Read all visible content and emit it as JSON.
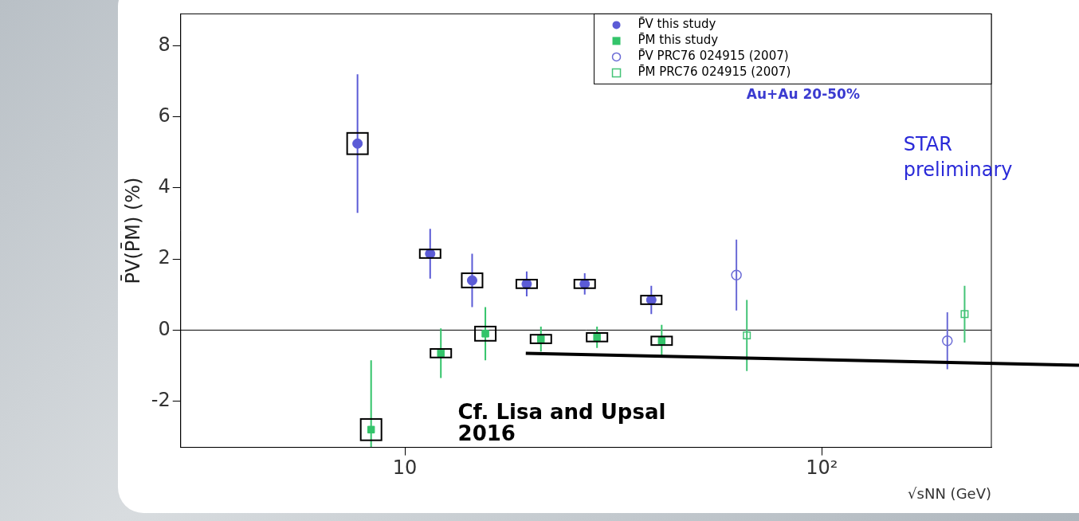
{
  "chart_data": {
    "type": "scatter",
    "x_label": "√sNN (GeV)",
    "y_label": "P̄V(P̄M) (%)",
    "log": "x",
    "grid": false,
    "legend": "upper right",
    "xlim": [
      2.9,
      255
    ],
    "xticks": [
      {
        "value": 10,
        "label": "10"
      },
      {
        "value": 100,
        "label": "10²"
      }
    ],
    "ylim": [
      -3.3,
      8.9
    ],
    "yticks": [
      -2,
      0,
      2,
      4,
      6,
      8
    ],
    "hline": 0,
    "series": [
      {
        "name": "P̄V this study",
        "color": "#5b5bd6",
        "marker": "circle",
        "x": [
          7.7,
          11.5,
          14.5,
          19.6,
          27,
          39
        ],
        "values": [
          5.25,
          2.15,
          1.4,
          1.3,
          1.3,
          0.85
        ],
        "errors": [
          1.95,
          0.7,
          0.75,
          0.35,
          0.3,
          0.4
        ],
        "sys": [
          0.3,
          0.12,
          0.2,
          0.12,
          0.12,
          0.12
        ]
      },
      {
        "name": "P̄M this study",
        "color": "#33c46a",
        "marker": "square",
        "x": [
          8.3,
          12.2,
          15.6,
          21.2,
          28.9,
          41.3
        ],
        "values": [
          -2.8,
          -0.65,
          -0.1,
          -0.25,
          -0.2,
          -0.3
        ],
        "errors": [
          1.95,
          0.7,
          0.75,
          0.35,
          0.3,
          0.45
        ],
        "sys": [
          0.3,
          0.12,
          0.2,
          0.12,
          0.12,
          0.12
        ]
      },
      {
        "name": "P̄V PRC76 024915 (2007)",
        "color": "#6b6bd6",
        "marker": "open_circle",
        "x": [
          62.4,
          200
        ],
        "values": [
          1.55,
          -0.3
        ],
        "errors": [
          1.0,
          0.8
        ]
      },
      {
        "name": "P̄M PRC76 024915 (2007)",
        "color": "#44c477",
        "marker": "open_square",
        "x": [
          66.1,
          220
        ],
        "values": [
          -0.15,
          0.45
        ],
        "errors": [
          1.0,
          0.8
        ]
      }
    ],
    "annotations": [
      {
        "text": "Au+Au 20-50%",
        "x": 66,
        "y": 6.6,
        "color": "#3b3bd0"
      },
      {
        "text": "STAR",
        "x": 157,
        "y": 5.2,
        "color": "#2a2ad8"
      },
      {
        "text": "preliminary",
        "x": 157,
        "y": 4.47,
        "color": "#2a2ad8"
      },
      {
        "text": "Cf. Lisa and Upsal",
        "x": 13.4,
        "y": -2.35,
        "color": "#000000"
      },
      {
        "text": "2016",
        "x": 13.4,
        "y": -2.95,
        "color": "#000000"
      }
    ],
    "pointer": {
      "x": 19.5,
      "y": -0.65
    }
  }
}
